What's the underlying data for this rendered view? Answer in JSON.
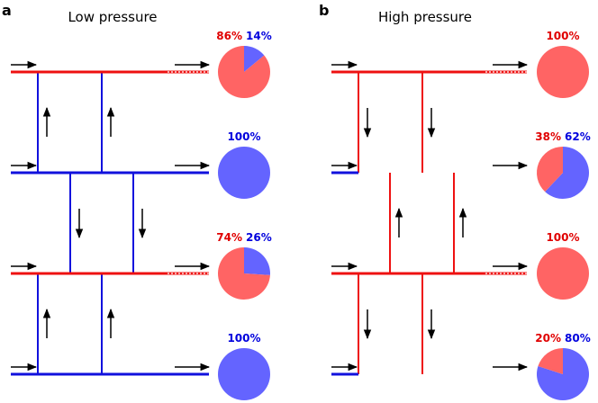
{
  "colors": {
    "red": "#ff6464",
    "blue": "#6464ff",
    "red_text": "#e00000",
    "blue_text": "#0000dd",
    "red_line": "#ee1111",
    "blue_line": "#1111dd"
  },
  "panels": [
    {
      "letter": "a",
      "title": "Low pressure",
      "rows": [
        {
          "line": "red",
          "dashed_end": true,
          "red_pct": 86,
          "blue_pct": 14,
          "red_label": "86%",
          "blue_label": "14%"
        },
        {
          "line": "blue",
          "dashed_end": false,
          "red_pct": 0,
          "blue_pct": 100,
          "red_label": "",
          "blue_label": "100%"
        },
        {
          "line": "red",
          "dashed_end": true,
          "red_pct": 74,
          "blue_pct": 26,
          "red_label": "74%",
          "blue_label": "26%"
        },
        {
          "line": "blue",
          "dashed_end": false,
          "red_pct": 0,
          "blue_pct": 100,
          "red_label": "",
          "blue_label": "100%"
        }
      ],
      "connectors": [
        {
          "between": [
            0,
            1
          ],
          "color": "blue",
          "arrow": "up"
        },
        {
          "between": [
            1,
            2
          ],
          "color": "blue",
          "arrow": "down"
        },
        {
          "between": [
            2,
            3
          ],
          "color": "blue",
          "arrow": "up"
        }
      ]
    },
    {
      "letter": "b",
      "title": "High pressure",
      "rows": [
        {
          "line": "red",
          "dashed_end": true,
          "red_pct": 100,
          "blue_pct": 0,
          "red_label": "100%",
          "blue_label": ""
        },
        {
          "line": "mix",
          "dashed_end": false,
          "red_pct": 38,
          "blue_pct": 62,
          "red_label": "38%",
          "blue_label": "62%"
        },
        {
          "line": "red",
          "dashed_end": true,
          "red_pct": 100,
          "blue_pct": 0,
          "red_label": "100%",
          "blue_label": ""
        },
        {
          "line": "mix",
          "dashed_end": false,
          "red_pct": 20,
          "blue_pct": 80,
          "red_label": "20%",
          "blue_label": "80%"
        }
      ],
      "connectors": [
        {
          "between": [
            0,
            1
          ],
          "color": "red",
          "arrow": "down"
        },
        {
          "between": [
            1,
            2
          ],
          "color": "red",
          "arrow": "up"
        },
        {
          "between": [
            2,
            3
          ],
          "color": "red",
          "arrow": "down"
        }
      ]
    }
  ]
}
